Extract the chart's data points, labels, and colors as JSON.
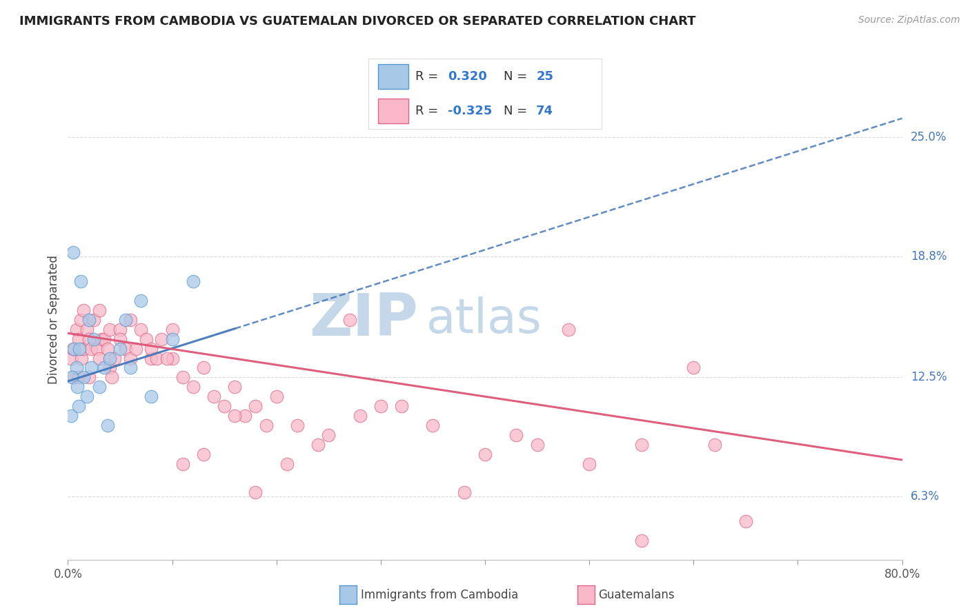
{
  "title": "IMMIGRANTS FROM CAMBODIA VS GUATEMALAN DIVORCED OR SEPARATED CORRELATION CHART",
  "source": "Source: ZipAtlas.com",
  "ylabel": "Divorced or Separated",
  "xmin": 0.0,
  "xmax": 80.0,
  "ymin": 3.0,
  "ymax": 28.0,
  "yticks": [
    6.3,
    12.5,
    18.8,
    25.0
  ],
  "ytick_labels": [
    "6.3%",
    "12.5%",
    "18.8%",
    "25.0%"
  ],
  "blue_color": "#a8c8e8",
  "blue_edge_color": "#5599cc",
  "blue_line_color": "#4477bb",
  "pink_color": "#f8b8c8",
  "pink_edge_color": "#dd6688",
  "pink_line_color": "#dd5577",
  "watermark_zip": "ZIP",
  "watermark_atlas": "atlas",
  "watermark_color": "#c5d8ea",
  "blue_dots_x": [
    0.3,
    0.5,
    0.8,
    1.0,
    1.2,
    1.5,
    1.8,
    2.0,
    2.2,
    2.5,
    3.0,
    3.5,
    4.0,
    5.0,
    6.0,
    7.0,
    8.0,
    10.0,
    12.0,
    0.4,
    0.6,
    0.9,
    1.1,
    3.8,
    5.5
  ],
  "blue_dots_y": [
    10.5,
    19.0,
    13.0,
    11.0,
    17.5,
    12.5,
    11.5,
    15.5,
    13.0,
    14.5,
    12.0,
    13.0,
    13.5,
    14.0,
    13.0,
    16.5,
    11.5,
    14.5,
    17.5,
    12.5,
    14.0,
    12.0,
    14.0,
    10.0,
    15.5
  ],
  "pink_dots_x": [
    0.3,
    0.5,
    0.6,
    0.8,
    1.0,
    1.0,
    1.2,
    1.3,
    1.5,
    1.5,
    1.8,
    2.0,
    2.0,
    2.2,
    2.5,
    2.8,
    3.0,
    3.0,
    3.2,
    3.5,
    3.8,
    4.0,
    4.0,
    4.2,
    4.5,
    5.0,
    5.0,
    5.5,
    6.0,
    6.0,
    6.5,
    7.0,
    7.5,
    8.0,
    8.0,
    8.5,
    9.0,
    10.0,
    10.0,
    11.0,
    12.0,
    13.0,
    14.0,
    15.0,
    16.0,
    17.0,
    18.0,
    19.0,
    20.0,
    22.0,
    25.0,
    28.0,
    30.0,
    35.0,
    40.0,
    45.0,
    50.0,
    55.0,
    60.0,
    65.0,
    9.5,
    11.0,
    13.0,
    16.0,
    18.0,
    21.0,
    24.0,
    27.0,
    32.0,
    38.0,
    43.0,
    48.0,
    55.0,
    62.0
  ],
  "pink_dots_y": [
    13.5,
    14.0,
    12.5,
    15.0,
    12.5,
    14.5,
    15.5,
    13.5,
    14.0,
    16.0,
    15.0,
    12.5,
    14.5,
    14.0,
    15.5,
    14.0,
    13.5,
    16.0,
    14.5,
    14.5,
    14.0,
    13.0,
    15.0,
    12.5,
    13.5,
    15.0,
    14.5,
    14.0,
    13.5,
    15.5,
    14.0,
    15.0,
    14.5,
    13.5,
    14.0,
    13.5,
    14.5,
    13.5,
    15.0,
    12.5,
    12.0,
    13.0,
    11.5,
    11.0,
    12.0,
    10.5,
    11.0,
    10.0,
    11.5,
    10.0,
    9.5,
    10.5,
    11.0,
    10.0,
    8.5,
    9.0,
    8.0,
    9.0,
    13.0,
    5.0,
    13.5,
    8.0,
    8.5,
    10.5,
    6.5,
    8.0,
    9.0,
    15.5,
    11.0,
    6.5,
    9.5,
    15.0,
    4.0,
    9.0
  ],
  "blue_line_x0": 0.0,
  "blue_line_y0": 12.3,
  "blue_line_x1": 80.0,
  "blue_line_y1": 26.0,
  "pink_line_x0": 0.0,
  "pink_line_y0": 14.8,
  "pink_line_x1": 80.0,
  "pink_line_y1": 8.2
}
